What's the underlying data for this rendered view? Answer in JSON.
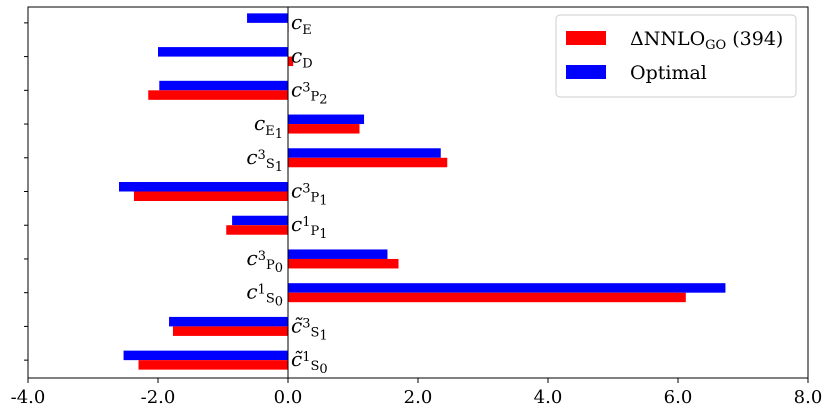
{
  "chart_data": {
    "type": "bar",
    "orientation": "horizontal",
    "categories": [
      {
        "base": "c",
        "tilde": true,
        "sub": "1S0",
        "sub_display": [
          "1",
          "S",
          "0"
        ]
      },
      {
        "base": "c",
        "tilde": true,
        "sub": "3S1",
        "sub_display": [
          "3",
          "S",
          "1"
        ]
      },
      {
        "base": "c",
        "tilde": false,
        "sub": "1S0",
        "sub_display": [
          "1",
          "S",
          "0"
        ]
      },
      {
        "base": "c",
        "tilde": false,
        "sub": "3P0",
        "sub_display": [
          "3",
          "P",
          "0"
        ]
      },
      {
        "base": "c",
        "tilde": false,
        "sub": "1P1",
        "sub_display": [
          "1",
          "P",
          "1"
        ]
      },
      {
        "base": "c",
        "tilde": false,
        "sub": "3P1",
        "sub_display": [
          "3",
          "P",
          "1"
        ]
      },
      {
        "base": "c",
        "tilde": false,
        "sub": "3S1",
        "sub_display": [
          "3",
          "S",
          "1"
        ]
      },
      {
        "base": "c",
        "tilde": false,
        "sub": "E1",
        "sub_display": [
          "",
          "E",
          "1"
        ]
      },
      {
        "base": "c",
        "tilde": false,
        "sub": "3P2",
        "sub_display": [
          "3",
          "P",
          "2"
        ]
      },
      {
        "base": "c",
        "tilde": false,
        "sub": "D",
        "sub_display": [
          "",
          "D",
          ""
        ]
      },
      {
        "base": "c",
        "tilde": false,
        "sub": "E",
        "sub_display": [
          "",
          "E",
          ""
        ]
      }
    ],
    "label_side": [
      "right",
      "right",
      "left",
      "left",
      "right",
      "right",
      "left",
      "left",
      "right",
      "right",
      "right"
    ],
    "series": [
      {
        "name": "ΔNNLO",
        "name_sub": "GO",
        "name_suffix": " (394)",
        "color": "#ff0000",
        "values": [
          -2.3,
          -1.77,
          6.12,
          1.7,
          -0.95,
          -2.37,
          2.45,
          1.1,
          -2.15,
          0.08,
          0.0
        ]
      },
      {
        "name": "Optimal",
        "color": "#0000ff",
        "values": [
          -2.53,
          -1.83,
          6.73,
          1.53,
          -0.86,
          -2.6,
          2.35,
          1.17,
          -1.98,
          -2.0,
          -0.63
        ]
      }
    ],
    "xlim": [
      -4.0,
      8.0
    ],
    "xticks": [
      -4.0,
      -2.0,
      0.0,
      2.0,
      4.0,
      6.0,
      8.0
    ],
    "xtick_labels": [
      "-4.0",
      "-2.0",
      "0.0",
      "2.0",
      "4.0",
      "6.0",
      "8.0"
    ],
    "legend_position": "top-right",
    "grid": false
  }
}
